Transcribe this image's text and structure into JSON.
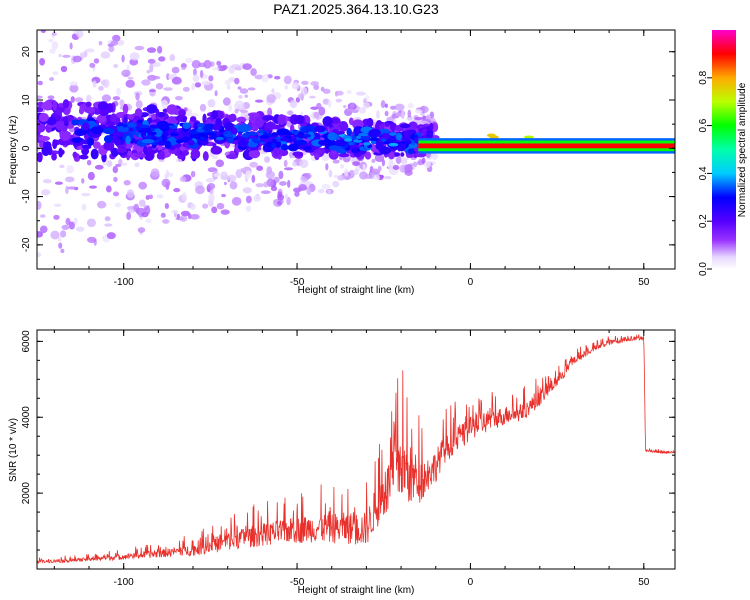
{
  "title": "PAZ1.2025.364.13.10.G23",
  "colors": {
    "snr_line": "#e8312c",
    "axis": "#000000"
  },
  "chart_data": [
    {
      "type": "heatmap",
      "xlabel": "Height of straight line (km)",
      "ylabel": "Frequency (Hz)",
      "xlim": [
        -125,
        59
      ],
      "ylim": [
        -25,
        24.5
      ],
      "x_ticks": [
        "-100",
        "-50",
        "0",
        "50"
      ],
      "x_tick_values": [
        -100,
        -50,
        0,
        50
      ],
      "y_ticks": [
        "-20",
        "-10",
        "0",
        "10",
        "20"
      ],
      "y_tick_values": [
        -20,
        -10,
        0,
        10,
        20
      ],
      "colorbar": {
        "label": "Normalized spectral amplitude",
        "range": [
          0,
          1
        ],
        "ticks": [
          "0.0",
          "0.2",
          "0.4",
          "0.6",
          "0.8"
        ],
        "tick_values": [
          0.0,
          0.2,
          0.4,
          0.6,
          0.8
        ],
        "colormap": "rainbow (white → violet → blue → cyan → green → yellow → red → magenta)"
      },
      "features": {
        "carrier_ridge": {
          "x_range": [
            -15,
            59
          ],
          "frequency_hz": 0.5,
          "amplitude": 0.9
        },
        "mid_ridge_segments": [
          {
            "x": -92,
            "frequency_hz": 3.5,
            "amplitude": 0.3
          },
          {
            "x": -72,
            "frequency_hz": 3.0,
            "amplitude": 0.32
          },
          {
            "x": -55,
            "frequency_hz": 2.5,
            "amplitude": 0.3
          },
          {
            "x": -30,
            "frequency_hz": 1.8,
            "amplitude": 0.35
          },
          {
            "x": -5,
            "frequency_hz": 1.2,
            "amplitude": 0.6
          },
          {
            "x": 10,
            "frequency_hz": 1.5,
            "amplitude": 0.8
          }
        ]
      }
    },
    {
      "type": "line",
      "series_name": "SNR",
      "xlabel": "Height of straight line (km)",
      "ylabel": "SNR (10 * v/v)",
      "xlim": [
        -125,
        59
      ],
      "ylim": [
        0,
        6300
      ],
      "x_ticks": [
        "-100",
        "-50",
        "0",
        "50"
      ],
      "x_tick_values": [
        -100,
        -50,
        0,
        50
      ],
      "y_ticks": [
        "2000",
        "4000",
        "6000"
      ],
      "y_tick_values": [
        2000,
        4000,
        6000
      ],
      "envelope": {
        "x": [
          -125,
          -110,
          -100,
          -90,
          -80,
          -72,
          -65,
          -55,
          -45,
          -35,
          -30,
          -28,
          -25,
          -22,
          -20,
          -17,
          -15,
          -13,
          -10,
          -8,
          -5,
          -2,
          0,
          5,
          10,
          15,
          20,
          25,
          30,
          35,
          40,
          45,
          50,
          50.5,
          55,
          59
        ],
        "base": [
          150,
          200,
          250,
          300,
          350,
          450,
          550,
          650,
          700,
          650,
          600,
          900,
          1300,
          1600,
          1800,
          1600,
          1700,
          1900,
          2300,
          2700,
          3000,
          3200,
          3400,
          3600,
          3800,
          3900,
          4300,
          4800,
          5400,
          5700,
          5900,
          6000,
          6050,
          3100,
          3050,
          3050
        ],
        "spread": [
          150,
          200,
          300,
          400,
          600,
          900,
          1100,
          1300,
          1500,
          1700,
          1800,
          2200,
          2600,
          3200,
          3700,
          3200,
          2600,
          2100,
          1700,
          1500,
          1400,
          1300,
          1200,
          1100,
          1000,
          900,
          800,
          600,
          400,
          300,
          250,
          200,
          200,
          100,
          100,
          100
        ]
      }
    }
  ]
}
